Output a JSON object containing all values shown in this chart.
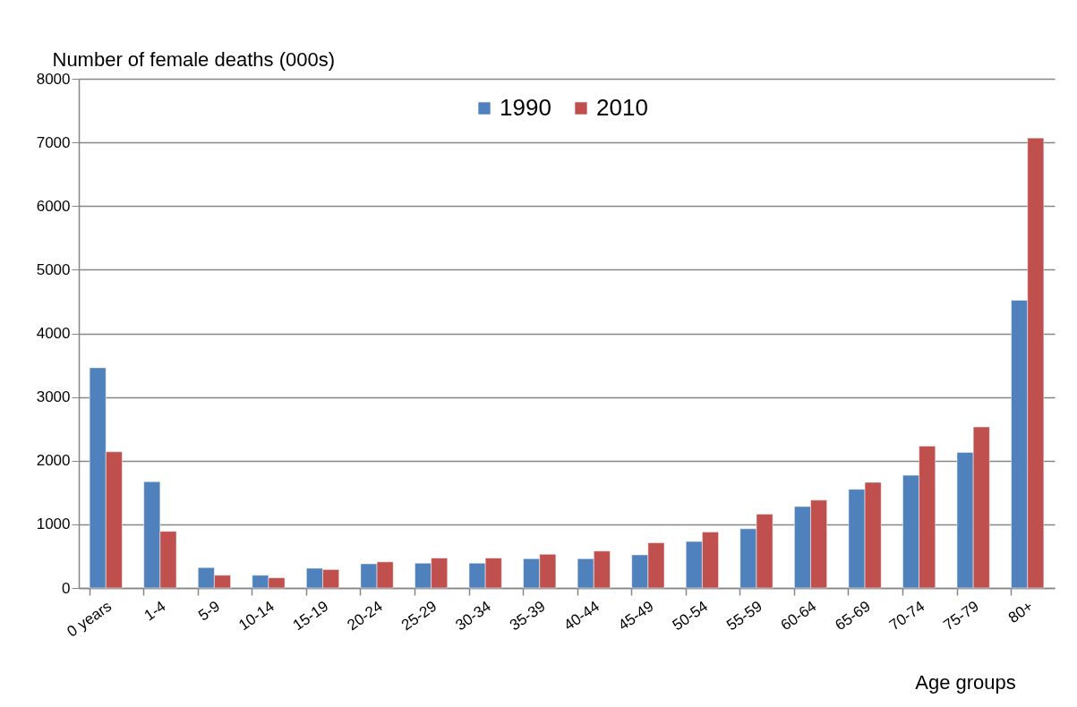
{
  "chart_data": {
    "type": "bar",
    "xlabel": "Age groups",
    "ylabel": "Number of female deaths (000s)",
    "categories": [
      "0 years",
      "1-4",
      "5-9",
      "10-14",
      "15-19",
      "20-24",
      "25-29",
      "30-34",
      "35-39",
      "40-44",
      "45-49",
      "50-54",
      "55-59",
      "60-64",
      "65-69",
      "70-74",
      "75-79",
      "80+"
    ],
    "series": [
      {
        "name": "1990",
        "color": "#4f81bd",
        "values": [
          3460,
          1670,
          320,
          200,
          310,
          380,
          390,
          390,
          460,
          460,
          520,
          730,
          930,
          1280,
          1550,
          1770,
          2130,
          4520
        ]
      },
      {
        "name": "2010",
        "color": "#c0504d",
        "values": [
          2140,
          890,
          200,
          160,
          290,
          410,
          470,
          470,
          530,
          580,
          710,
          880,
          1160,
          1380,
          1660,
          2230,
          2530,
          7070
        ]
      }
    ],
    "ylim": [
      0,
      8000
    ],
    "yticks": [
      0,
      1000,
      2000,
      3000,
      4000,
      5000,
      6000,
      7000,
      8000
    ],
    "grid": "y",
    "legend": "top"
  }
}
